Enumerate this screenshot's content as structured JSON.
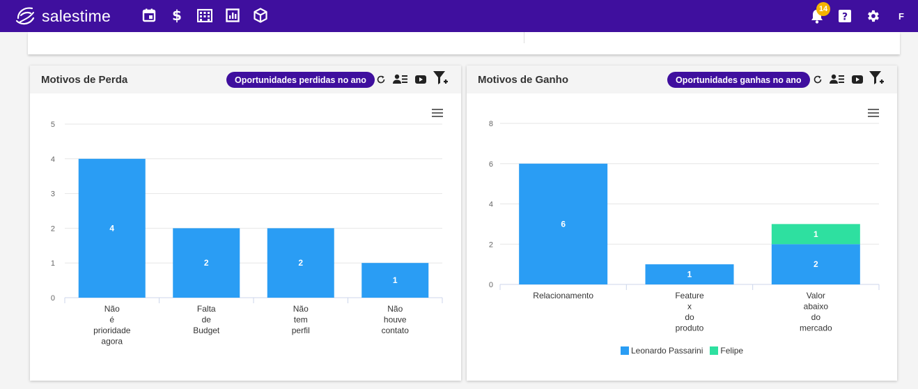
{
  "brand": {
    "name": "salestime"
  },
  "nav": {
    "icons": [
      "calendar-icon",
      "dollar-icon",
      "building-icon",
      "report-chart-icon",
      "package-icon"
    ]
  },
  "header_right": {
    "notification_count": "14",
    "user_initial": "F"
  },
  "colors": {
    "topbar": "#3f0f9e",
    "pill": "#3f0f9e",
    "series_blue": "#2a9df4",
    "series_green": "#2ee0a0",
    "badge": "#f5b300"
  },
  "panels": [
    {
      "title": "Motivos de Perda",
      "filter_label": "Oportunidades perdidas no ano"
    },
    {
      "title": "Motivos de Ganho",
      "filter_label": "Oportunidades ganhas no ano"
    }
  ],
  "chart_data": [
    {
      "type": "bar",
      "categories": [
        [
          "Não",
          "é",
          "prioridade",
          "agora"
        ],
        [
          "Falta",
          "de",
          "Budget"
        ],
        [
          "Não",
          "tem",
          "perfil"
        ],
        [
          "Não",
          "houve",
          "contato"
        ]
      ],
      "series": [
        {
          "values": [
            4,
            2,
            2,
            1
          ],
          "color": "#2a9df4"
        }
      ],
      "yticks": [
        "0",
        "1",
        "2",
        "3",
        "4",
        "5"
      ],
      "ylim": [
        0,
        5
      ],
      "data_labels": true,
      "grid": true,
      "legend": "none"
    },
    {
      "type": "bar",
      "stacked": true,
      "categories": [
        [
          "Relacionamento"
        ],
        [
          "Feature",
          "x",
          "do",
          "produto"
        ],
        [
          "Valor",
          "abaixo",
          "do",
          "mercado"
        ]
      ],
      "series": [
        {
          "name": "Leonardo Passarini",
          "values": [
            6,
            1,
            2
          ],
          "color": "#2a9df4"
        },
        {
          "name": "Felipe",
          "values": [
            0,
            0,
            1
          ],
          "color": "#2ee0a0"
        }
      ],
      "yticks": [
        "0",
        "2",
        "4",
        "6",
        "8"
      ],
      "ylim": [
        0,
        8
      ],
      "data_labels": true,
      "grid": true,
      "legend": "bottom"
    }
  ]
}
